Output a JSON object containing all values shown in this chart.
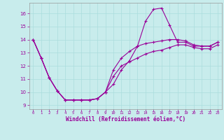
{
  "xlabel": "Windchill (Refroidissement éolien,°C)",
  "background_color": "#c8ecec",
  "line_color": "#990099",
  "grid_color": "#aadddd",
  "xlim": [
    -0.5,
    23.5
  ],
  "ylim": [
    8.7,
    16.8
  ],
  "yticks": [
    9,
    10,
    11,
    12,
    13,
    14,
    15,
    16
  ],
  "xticks": [
    0,
    1,
    2,
    3,
    4,
    5,
    6,
    7,
    8,
    9,
    10,
    11,
    12,
    13,
    14,
    15,
    16,
    17,
    18,
    19,
    20,
    21,
    22,
    23
  ],
  "line1_x": [
    0,
    1,
    2,
    3,
    4,
    5,
    6,
    7,
    8,
    9,
    10,
    11,
    12,
    13,
    14,
    15,
    16,
    17,
    18,
    19,
    20,
    21,
    22,
    23
  ],
  "line1_y": [
    14.0,
    12.6,
    11.1,
    10.1,
    9.4,
    9.4,
    9.4,
    9.4,
    9.5,
    10.0,
    10.6,
    11.7,
    12.4,
    13.5,
    15.4,
    16.3,
    16.4,
    15.1,
    13.8,
    13.8,
    13.5,
    13.5,
    13.5,
    13.8
  ],
  "line2_x": [
    0,
    1,
    2,
    3,
    4,
    5,
    6,
    7,
    8,
    9,
    10,
    11,
    12,
    13,
    14,
    15,
    16,
    17,
    18,
    19,
    20,
    21,
    22,
    23
  ],
  "line2_y": [
    14.0,
    12.6,
    11.1,
    10.1,
    9.4,
    9.4,
    9.4,
    9.4,
    9.5,
    10.0,
    11.7,
    12.6,
    13.1,
    13.5,
    13.7,
    13.8,
    13.9,
    14.0,
    14.0,
    13.9,
    13.6,
    13.5,
    13.5,
    13.8
  ],
  "line3_x": [
    0,
    1,
    2,
    3,
    4,
    5,
    6,
    7,
    8,
    9,
    10,
    11,
    12,
    13,
    14,
    15,
    16,
    17,
    18,
    19,
    20,
    21,
    22,
    23
  ],
  "line3_y": [
    14.0,
    12.6,
    11.1,
    10.1,
    9.4,
    9.4,
    9.4,
    9.4,
    9.5,
    10.0,
    11.2,
    12.0,
    12.3,
    12.6,
    12.9,
    13.1,
    13.2,
    13.4,
    13.6,
    13.6,
    13.4,
    13.3,
    13.3,
    13.6
  ]
}
